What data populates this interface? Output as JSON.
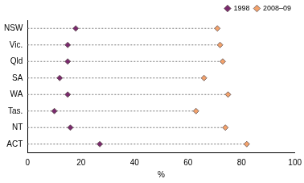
{
  "chart_data": {
    "type": "dot",
    "orientation": "horizontal",
    "categories": [
      "NSW",
      "Vic.",
      "Qld",
      "SA",
      "WA",
      "Tas.",
      "NT",
      "ACT"
    ],
    "series": [
      {
        "name": "1998",
        "color": "#7a2a6e",
        "marker": "diamond",
        "values": [
          18,
          15,
          15,
          12,
          15,
          10,
          16,
          27
        ]
      },
      {
        "name": "2008–09",
        "color": "#f4a36c",
        "marker": "diamond",
        "values": [
          71,
          72,
          73,
          66,
          75,
          63,
          74,
          82
        ]
      }
    ],
    "xlabel": "%",
    "xlim": [
      0,
      100
    ],
    "xticks": [
      0,
      20,
      40,
      60,
      80,
      100
    ],
    "grid": false,
    "legend": "top right"
  }
}
